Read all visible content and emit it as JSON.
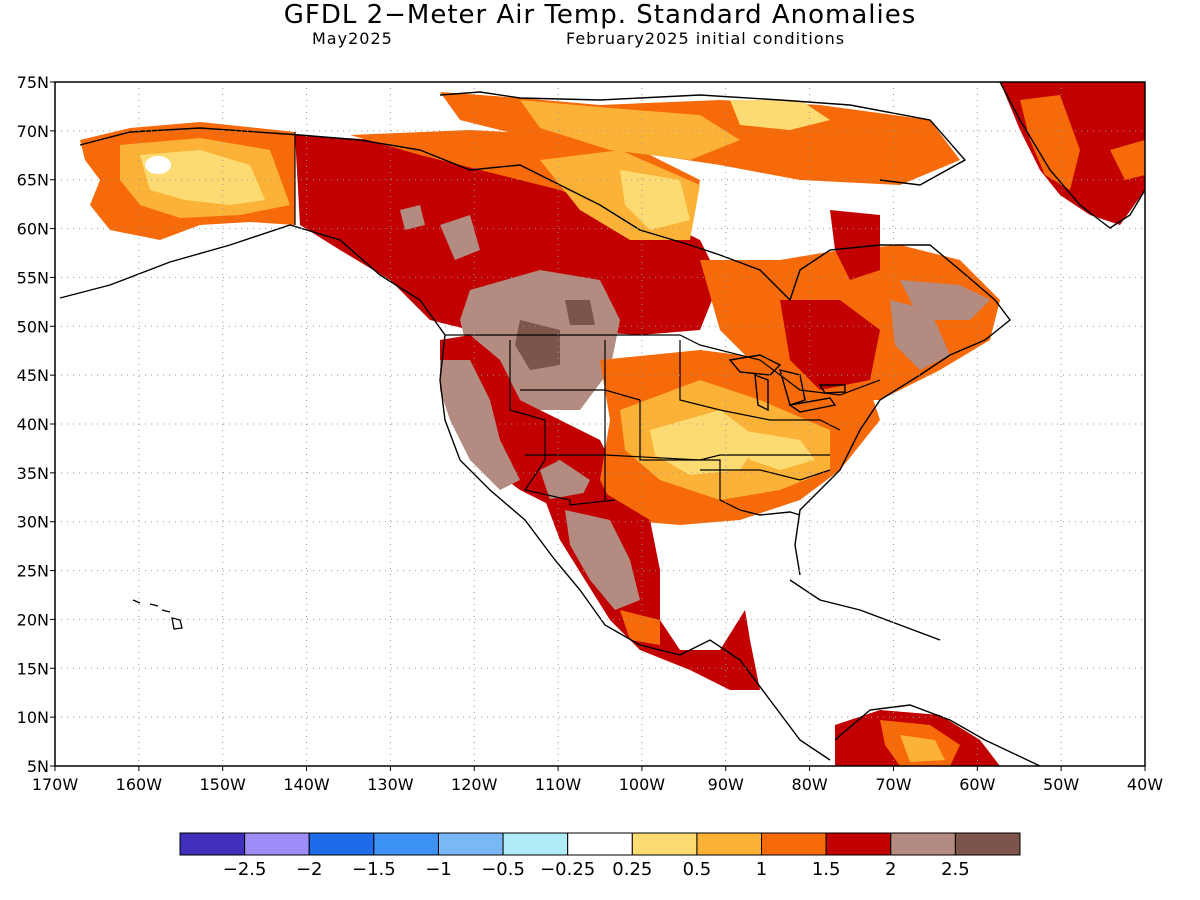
{
  "title": "GFDL 2−Meter Air Temp. Standard Anomalies",
  "subtitle_left": "May2025",
  "subtitle_right": "February2025 initial conditions",
  "map": {
    "lon_range": [
      -170,
      -40
    ],
    "lat_range": [
      5,
      75
    ],
    "lat_ticks": [
      "5N",
      "10N",
      "15N",
      "20N",
      "25N",
      "30N",
      "35N",
      "40N",
      "45N",
      "50N",
      "55N",
      "60N",
      "65N",
      "70N",
      "75N"
    ],
    "lon_ticks": [
      "170W",
      "160W",
      "150W",
      "140W",
      "130W",
      "120W",
      "110W",
      "100W",
      "90W",
      "80W",
      "70W",
      "60W",
      "50W",
      "40W"
    ],
    "grid": "dotted"
  },
  "colorbar": {
    "colors": [
      "#3f2fbb",
      "#a08cf8",
      "#1f6cea",
      "#3d93f3",
      "#78b9f5",
      "#b0ecf7",
      "#ffffff",
      "#fddb73",
      "#fbb237",
      "#f76a09",
      "#c20000",
      "#b48b80",
      "#7d5449"
    ],
    "labels": [
      "−2.5",
      "−2",
      "−1.5",
      "−1",
      "−0.5",
      "−0.25",
      "0.25",
      "0.5",
      "1",
      "1.5",
      "2",
      "2.5"
    ]
  }
}
